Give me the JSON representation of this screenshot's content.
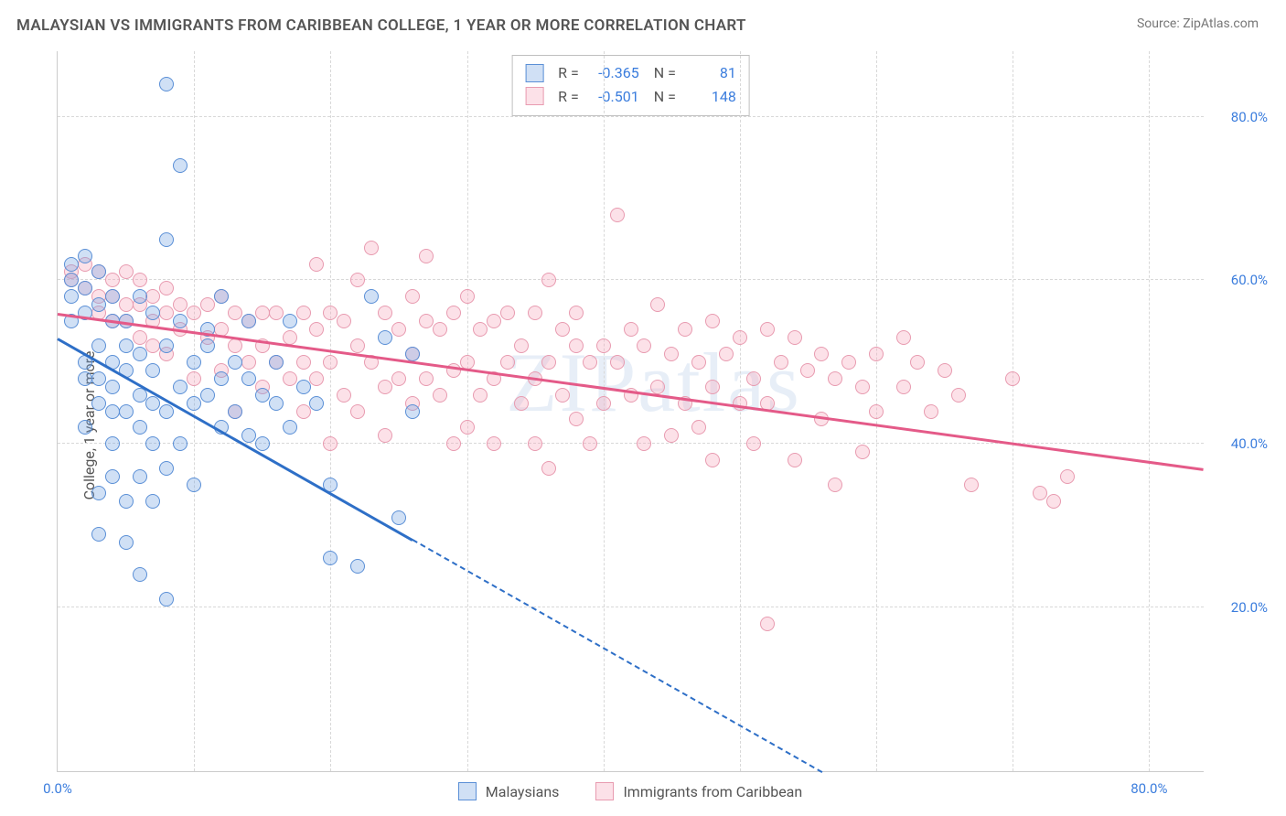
{
  "title": "MALAYSIAN VS IMMIGRANTS FROM CARIBBEAN COLLEGE, 1 YEAR OR MORE CORRELATION CHART",
  "source": "Source: ZipAtlas.com",
  "watermark": "ZIPatlas",
  "ylabel": "College, 1 year or more",
  "series_a": {
    "label": "Malaysians",
    "color_stroke": "#5a8fd6",
    "color_fill": "rgba(120,165,225,0.35)",
    "trend_color": "#2e6fc7",
    "R": "-0.365",
    "N": "81",
    "trend": {
      "x1": 0,
      "y1": 53,
      "x2": 56,
      "y2": 0,
      "solid_until_x": 26
    },
    "points": [
      [
        1,
        60
      ],
      [
        1,
        62
      ],
      [
        1,
        58
      ],
      [
        1,
        55
      ],
      [
        2,
        63
      ],
      [
        2,
        59
      ],
      [
        2,
        56
      ],
      [
        2,
        50
      ],
      [
        2,
        48
      ],
      [
        2,
        42
      ],
      [
        3,
        61
      ],
      [
        3,
        57
      ],
      [
        3,
        52
      ],
      [
        3,
        48
      ],
      [
        3,
        45
      ],
      [
        3,
        34
      ],
      [
        3,
        29
      ],
      [
        4,
        58
      ],
      [
        4,
        55
      ],
      [
        4,
        50
      ],
      [
        4,
        47
      ],
      [
        4,
        44
      ],
      [
        4,
        40
      ],
      [
        4,
        36
      ],
      [
        5,
        55
      ],
      [
        5,
        52
      ],
      [
        5,
        49
      ],
      [
        5,
        44
      ],
      [
        5,
        33
      ],
      [
        5,
        28
      ],
      [
        6,
        58
      ],
      [
        6,
        51
      ],
      [
        6,
        46
      ],
      [
        6,
        42
      ],
      [
        6,
        36
      ],
      [
        6,
        24
      ],
      [
        7,
        56
      ],
      [
        7,
        49
      ],
      [
        7,
        45
      ],
      [
        7,
        40
      ],
      [
        7,
        33
      ],
      [
        8,
        84
      ],
      [
        8,
        65
      ],
      [
        8,
        37
      ],
      [
        8,
        44
      ],
      [
        8,
        52
      ],
      [
        8,
        21
      ],
      [
        9,
        55
      ],
      [
        9,
        47
      ],
      [
        9,
        40
      ],
      [
        9,
        74
      ],
      [
        10,
        50
      ],
      [
        10,
        45
      ],
      [
        10,
        35
      ],
      [
        11,
        46
      ],
      [
        11,
        52
      ],
      [
        11,
        54
      ],
      [
        12,
        42
      ],
      [
        12,
        48
      ],
      [
        12,
        58
      ],
      [
        13,
        44
      ],
      [
        13,
        50
      ],
      [
        14,
        41
      ],
      [
        14,
        48
      ],
      [
        14,
        55
      ],
      [
        15,
        46
      ],
      [
        15,
        40
      ],
      [
        16,
        50
      ],
      [
        16,
        45
      ],
      [
        17,
        42
      ],
      [
        17,
        55
      ],
      [
        18,
        47
      ],
      [
        19,
        45
      ],
      [
        20,
        26
      ],
      [
        20,
        35
      ],
      [
        22,
        25
      ],
      [
        23,
        58
      ],
      [
        24,
        53
      ],
      [
        25,
        31
      ],
      [
        26,
        44
      ],
      [
        26,
        51
      ]
    ]
  },
  "series_b": {
    "label": "Immigrants from Caribbean",
    "color_stroke": "#e89bb0",
    "color_fill": "rgba(245,170,190,0.35)",
    "trend_color": "#e45a88",
    "R": "-0.501",
    "N": "148",
    "trend": {
      "x1": 0,
      "y1": 56,
      "x2": 84,
      "y2": 37
    },
    "points": [
      [
        1,
        61
      ],
      [
        1,
        60
      ],
      [
        2,
        62
      ],
      [
        2,
        59
      ],
      [
        3,
        61
      ],
      [
        3,
        58
      ],
      [
        3,
        56
      ],
      [
        4,
        60
      ],
      [
        4,
        58
      ],
      [
        4,
        55
      ],
      [
        5,
        61
      ],
      [
        5,
        57
      ],
      [
        5,
        55
      ],
      [
        6,
        60
      ],
      [
        6,
        57
      ],
      [
        6,
        53
      ],
      [
        7,
        58
      ],
      [
        7,
        55
      ],
      [
        7,
        52
      ],
      [
        8,
        59
      ],
      [
        8,
        56
      ],
      [
        8,
        51
      ],
      [
        9,
        57
      ],
      [
        9,
        54
      ],
      [
        10,
        56
      ],
      [
        10,
        48
      ],
      [
        11,
        57
      ],
      [
        11,
        53
      ],
      [
        12,
        58
      ],
      [
        12,
        54
      ],
      [
        12,
        49
      ],
      [
        13,
        56
      ],
      [
        13,
        52
      ],
      [
        13,
        44
      ],
      [
        14,
        55
      ],
      [
        14,
        50
      ],
      [
        15,
        56
      ],
      [
        15,
        52
      ],
      [
        15,
        47
      ],
      [
        16,
        56
      ],
      [
        16,
        50
      ],
      [
        17,
        53
      ],
      [
        17,
        48
      ],
      [
        18,
        56
      ],
      [
        18,
        50
      ],
      [
        18,
        44
      ],
      [
        19,
        62
      ],
      [
        19,
        54
      ],
      [
        19,
        48
      ],
      [
        20,
        56
      ],
      [
        20,
        50
      ],
      [
        20,
        40
      ],
      [
        21,
        55
      ],
      [
        21,
        46
      ],
      [
        22,
        60
      ],
      [
        22,
        52
      ],
      [
        22,
        44
      ],
      [
        23,
        64
      ],
      [
        23,
        50
      ],
      [
        24,
        56
      ],
      [
        24,
        47
      ],
      [
        24,
        41
      ],
      [
        25,
        54
      ],
      [
        25,
        48
      ],
      [
        26,
        58
      ],
      [
        26,
        51
      ],
      [
        26,
        45
      ],
      [
        27,
        63
      ],
      [
        27,
        55
      ],
      [
        27,
        48
      ],
      [
        28,
        54
      ],
      [
        28,
        46
      ],
      [
        29,
        56
      ],
      [
        29,
        49
      ],
      [
        29,
        40
      ],
      [
        30,
        58
      ],
      [
        30,
        50
      ],
      [
        30,
        42
      ],
      [
        31,
        54
      ],
      [
        31,
        46
      ],
      [
        32,
        55
      ],
      [
        32,
        48
      ],
      [
        32,
        40
      ],
      [
        33,
        56
      ],
      [
        33,
        50
      ],
      [
        34,
        52
      ],
      [
        34,
        45
      ],
      [
        35,
        56
      ],
      [
        35,
        48
      ],
      [
        35,
        40
      ],
      [
        36,
        60
      ],
      [
        36,
        50
      ],
      [
        36,
        37
      ],
      [
        37,
        54
      ],
      [
        37,
        46
      ],
      [
        38,
        52
      ],
      [
        38,
        56
      ],
      [
        38,
        43
      ],
      [
        39,
        50
      ],
      [
        39,
        40
      ],
      [
        40,
        52
      ],
      [
        40,
        45
      ],
      [
        41,
        68
      ],
      [
        41,
        50
      ],
      [
        42,
        54
      ],
      [
        42,
        46
      ],
      [
        43,
        52
      ],
      [
        43,
        40
      ],
      [
        44,
        57
      ],
      [
        44,
        47
      ],
      [
        45,
        51
      ],
      [
        45,
        41
      ],
      [
        46,
        54
      ],
      [
        46,
        45
      ],
      [
        47,
        50
      ],
      [
        47,
        42
      ],
      [
        48,
        55
      ],
      [
        48,
        47
      ],
      [
        48,
        38
      ],
      [
        49,
        51
      ],
      [
        50,
        53
      ],
      [
        50,
        45
      ],
      [
        51,
        48
      ],
      [
        51,
        40
      ],
      [
        52,
        54
      ],
      [
        52,
        45
      ],
      [
        53,
        50
      ],
      [
        54,
        53
      ],
      [
        54,
        38
      ],
      [
        55,
        49
      ],
      [
        56,
        51
      ],
      [
        56,
        43
      ],
      [
        57,
        48
      ],
      [
        57,
        35
      ],
      [
        58,
        50
      ],
      [
        59,
        47
      ],
      [
        59,
        39
      ],
      [
        60,
        51
      ],
      [
        60,
        44
      ],
      [
        62,
        47
      ],
      [
        62,
        53
      ],
      [
        63,
        50
      ],
      [
        64,
        44
      ],
      [
        65,
        49
      ],
      [
        66,
        46
      ],
      [
        67,
        35
      ],
      [
        70,
        48
      ],
      [
        72,
        34
      ],
      [
        73,
        33
      ],
      [
        74,
        36
      ],
      [
        52,
        18
      ]
    ]
  },
  "axes": {
    "xmin": 0,
    "xmax": 84,
    "ymin": 0,
    "ymax": 88,
    "xticks": [
      {
        "v": 0,
        "label": "0.0%"
      },
      {
        "v": 80,
        "label": "80.0%"
      }
    ],
    "yticks": [
      {
        "v": 20,
        "label": "20.0%"
      },
      {
        "v": 40,
        "label": "40.0%"
      },
      {
        "v": 60,
        "label": "60.0%"
      },
      {
        "v": 80,
        "label": "80.0%"
      }
    ],
    "xgrid_step": 10,
    "point_radius": 8,
    "grid_color": "#d8d8d8",
    "axis_color": "#cccccc",
    "tick_color": "#3b7ddd"
  }
}
